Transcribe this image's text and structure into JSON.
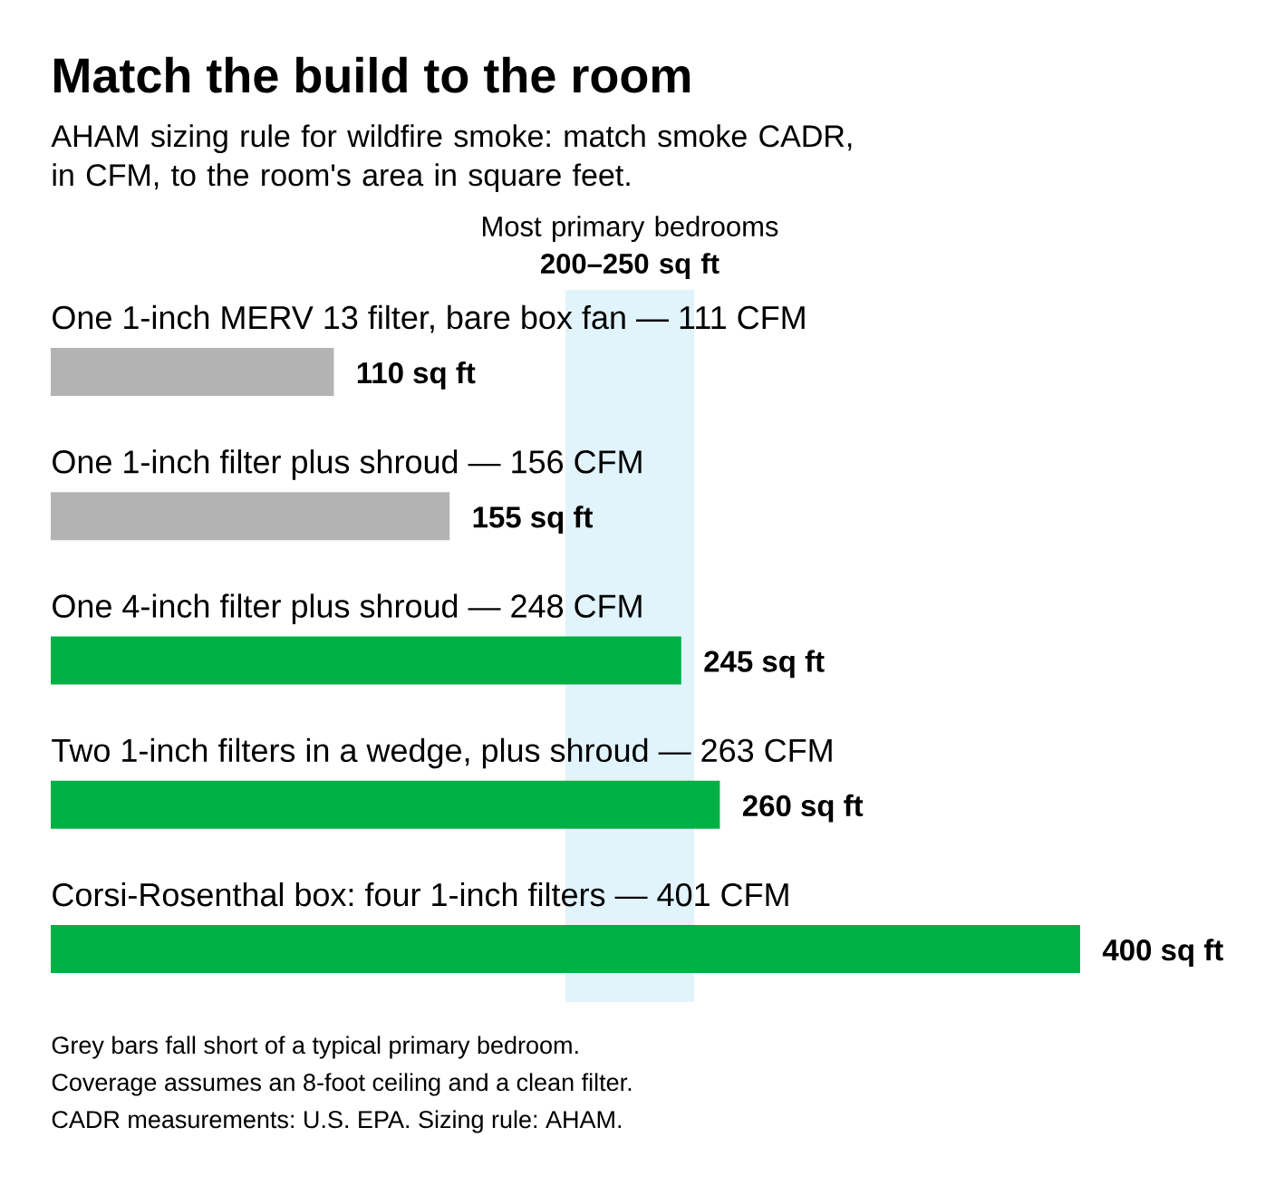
{
  "chart_data": {
    "type": "bar",
    "orientation": "horizontal",
    "title": "Match the build to the room",
    "subtitle": "AHAM sizing rule for wildfire smoke: match smoke CADR, in CFM, to the room's area in square feet.",
    "categories": [
      "One 1-inch MERV 13 filter, bare box fan — 111 CFM",
      "One 1-inch filter plus shroud — 156 CFM",
      "One 4-inch filter plus shroud — 248 CFM",
      "Two 1-inch filters in a wedge, plus shroud — 263 CFM",
      "Corsi-Rosenthal box: four 1-inch filters — 401 CFM"
    ],
    "values": [
      110,
      155,
      245,
      260,
      400
    ],
    "colors": [
      "#b3b3b3",
      "#b3b3b3",
      "#00b044",
      "#00b044",
      "#00b044"
    ],
    "value_labels": [
      "110 sq ft",
      "155 sq ft",
      "245 sq ft",
      "260 sq ft",
      "400 sq ft"
    ],
    "xlim": [
      0,
      400
    ],
    "tick_labels": false,
    "bands": [
      {
        "axis": "x",
        "from": 200,
        "to": 250,
        "label": "Most primary bedrooms **200–250 sq ft**",
        "color": "#e1f3fb"
      }
    ],
    "annotations": [
      "Grey bars fall short of a typical primary bedroom.",
      "Coverage assumes an 8-foot ceiling and a clean filter.",
      "CADR measurements: U.S. EPA. Sizing rule: AHAM."
    ]
  }
}
